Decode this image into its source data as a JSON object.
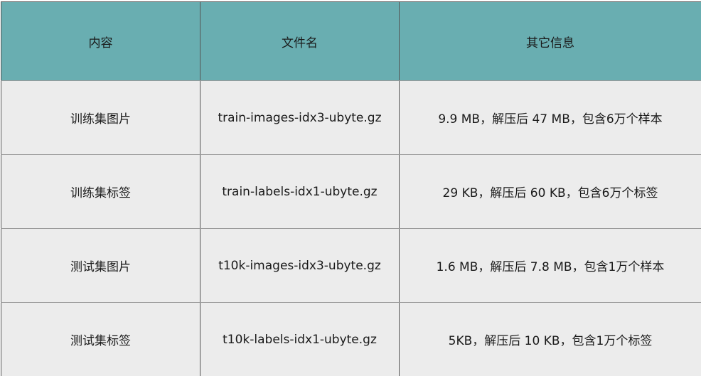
{
  "table": {
    "headers": [
      "内容",
      "文件名",
      "其它信息"
    ],
    "rows": [
      [
        "训练集图片",
        "train-images-idx3-ubyte.gz",
        "9.9 MB，解压后 47 MB，包含6万个样本"
      ],
      [
        "训练集标签",
        "train-labels-idx1-ubyte.gz",
        "29 KB，解压后 60 KB，包含6万个标签"
      ],
      [
        "测试集图片",
        "t10k-images-idx3-ubyte.gz",
        "1.6 MB，解压后 7.8 MB，包含1万个样本"
      ],
      [
        "测试集标签",
        "t10k-labels-idx1-ubyte.gz",
        "5KB，解压后 10 KB，包含1万个标签"
      ]
    ],
    "colors": {
      "header_bg": "#69aeb1",
      "row_bg": "#ececec"
    }
  }
}
